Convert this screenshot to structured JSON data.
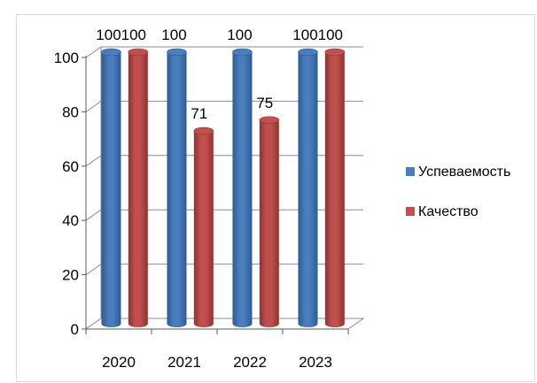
{
  "chart_data": {
    "type": "bar",
    "categories": [
      "2020",
      "2021",
      "2022",
      "2023"
    ],
    "series": [
      {
        "name": "Успеваемость",
        "values": [
          100,
          100,
          100,
          100
        ],
        "color": "#4a7dbd",
        "shade": "#2e5a91",
        "label_on": [
          true,
          true,
          true,
          true
        ]
      },
      {
        "name": "Качество",
        "values": [
          100,
          71,
          75,
          100
        ],
        "color": "#c0504d",
        "shade": "#8f3331",
        "label_on": [
          true,
          true,
          true,
          true
        ]
      }
    ],
    "ylim": [
      0,
      100
    ],
    "y_ticks": [
      "0",
      "20",
      "40",
      "60",
      "80",
      "100"
    ],
    "legend_position": "right",
    "grid": true,
    "style": "3d-cylinder"
  }
}
